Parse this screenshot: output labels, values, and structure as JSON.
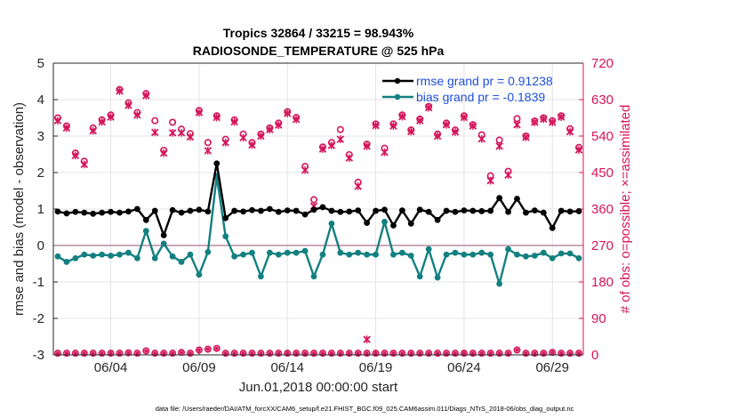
{
  "chart_data": {
    "type": "line",
    "title": "Tropics 32864 / 33215 = 98.943%",
    "subtitle": "RADIOSONDE_TEMPERATURE @ 525 hPa",
    "xlabel": "Jun.01,2018 00:00:00 start",
    "ylabel_left": "rmse and bias (model - observation)",
    "ylabel_right": "# of obs: o=possible; ×=assimilated",
    "footnote": "data file: /Users/raeder/DAI/ATM_forcXX/CAM6_setup/f.e21.FHIST_BGC.f09_025.CAM6assim.011/Diags_NTrS_2018-06/obs_diag_output.nc",
    "x_tick_labels": [
      "06/04",
      "06/09",
      "06/14",
      "06/19",
      "06/24",
      "06/29"
    ],
    "x_tick_days": [
      4,
      9,
      14,
      19,
      24,
      29
    ],
    "xlim": [
      0.75,
      30.75
    ],
    "ylim_left": [
      -3,
      5
    ],
    "yticks_left": [
      "5",
      "4",
      "3",
      "2",
      "1",
      "0",
      "-1",
      "-2",
      "-3"
    ],
    "ylim_right": [
      0,
      720
    ],
    "yticks_right": [
      "720",
      "630",
      "540",
      "450",
      "360",
      "270",
      "180",
      "90",
      "0"
    ],
    "grid": true,
    "colors": {
      "rmse": "#000000",
      "bias": "#138080",
      "obs": "#d4145a",
      "zero_line": "#c8a8b8",
      "legend_text": "#1f4fd8"
    },
    "legend": {
      "position": "top-right",
      "entries": [
        "rmse grand pr = 0.91238",
        "bias grand pr = -0.1839"
      ]
    },
    "series": [
      {
        "name": "rmse",
        "x": [
          1,
          1.5,
          2,
          2.5,
          3,
          3.5,
          4,
          4.5,
          5,
          5.5,
          6,
          6.5,
          7,
          7.5,
          8,
          8.5,
          9,
          9.5,
          10,
          10.5,
          11,
          11.5,
          12,
          12.5,
          13,
          13.5,
          14,
          14.5,
          15,
          15.5,
          16,
          16.5,
          17,
          17.5,
          18,
          18.5,
          19,
          19.5,
          20,
          20.5,
          21,
          21.5,
          22,
          22.5,
          23,
          23.5,
          24,
          24.5,
          25,
          25.5,
          26,
          26.5,
          27,
          27.5,
          28,
          28.5,
          29,
          29.5,
          30,
          30.5
        ],
        "values": [
          0.93,
          0.88,
          0.92,
          0.9,
          0.87,
          0.9,
          0.92,
          0.9,
          0.93,
          1.0,
          0.7,
          0.95,
          0.28,
          0.97,
          0.9,
          0.95,
          0.98,
          0.93,
          2.25,
          0.75,
          0.95,
          0.93,
          0.97,
          0.95,
          1.0,
          0.92,
          0.96,
          0.95,
          0.85,
          0.98,
          1.05,
          0.95,
          0.92,
          0.93,
          0.96,
          0.62,
          0.95,
          0.98,
          0.55,
          0.96,
          0.6,
          0.98,
          0.92,
          0.7,
          0.95,
          0.92,
          0.96,
          0.95,
          0.94,
          0.95,
          1.3,
          0.92,
          1.28,
          0.9,
          0.96,
          0.9,
          0.48,
          0.95,
          0.93,
          0.94
        ]
      },
      {
        "name": "bias",
        "x": [
          1,
          1.5,
          2,
          2.5,
          3,
          3.5,
          4,
          4.5,
          5,
          5.5,
          6,
          6.5,
          7,
          7.5,
          8,
          8.5,
          9,
          9.5,
          10,
          10.5,
          11,
          11.5,
          12,
          12.5,
          13,
          13.5,
          14,
          14.5,
          15,
          15.5,
          16,
          16.5,
          17,
          17.5,
          18,
          18.5,
          19,
          19.5,
          20,
          20.5,
          21,
          21.5,
          22,
          22.5,
          23,
          23.5,
          24,
          24.5,
          25,
          25.5,
          26,
          26.5,
          27,
          27.5,
          28,
          28.5,
          29,
          29.5,
          30,
          30.5
        ],
        "values": [
          -0.3,
          -0.45,
          -0.35,
          -0.25,
          -0.28,
          -0.25,
          -0.28,
          -0.25,
          -0.2,
          -0.35,
          0.4,
          -0.35,
          0.05,
          -0.3,
          -0.45,
          -0.25,
          -0.8,
          -0.18,
          1.9,
          0.25,
          -0.3,
          -0.25,
          -0.2,
          -0.85,
          -0.2,
          -0.25,
          -0.2,
          -0.2,
          -0.15,
          -0.85,
          -0.25,
          0.6,
          -0.2,
          -0.25,
          -0.2,
          -0.25,
          -0.25,
          0.65,
          -0.25,
          -0.2,
          -0.28,
          -0.85,
          -0.1,
          -0.88,
          -0.25,
          -0.2,
          -0.25,
          -0.25,
          -0.2,
          -0.25,
          -1.05,
          -0.1,
          -0.25,
          -0.3,
          -0.28,
          -0.2,
          -0.35,
          -0.22,
          -0.22,
          -0.35
        ]
      },
      {
        "name": "obs possible",
        "marker": "o",
        "x": [
          1,
          1.5,
          2,
          2.5,
          3,
          3.5,
          4,
          4.5,
          5,
          5.5,
          6,
          6.5,
          7,
          7.5,
          8,
          8.5,
          9,
          9.5,
          10,
          10.5,
          11,
          11.5,
          12,
          12.5,
          13,
          13.5,
          14,
          14.5,
          15,
          15.5,
          16,
          16.5,
          17,
          17.5,
          18,
          18.5,
          19,
          19.5,
          20,
          20.5,
          21,
          21.5,
          22,
          22.5,
          23,
          23.5,
          24,
          24.5,
          25,
          25.5,
          26,
          26.5,
          27,
          27.5,
          28,
          28.5,
          29,
          29.5,
          30,
          30.5
        ],
        "values": [
          585,
          565,
          498,
          478,
          560,
          580,
          592,
          655,
          622,
          598,
          645,
          578,
          505,
          574,
          557,
          546,
          603,
          524,
          590,
          532,
          580,
          545,
          524,
          545,
          560,
          572,
          600,
          586,
          465,
          383,
          513,
          524,
          556,
          494,
          426,
          520,
          570,
          510,
          570,
          592,
          555,
          582,
          613,
          545,
          572,
          555,
          590,
          568,
          543,
          442,
          530,
          453,
          583,
          540,
          577,
          585,
          578,
          590,
          558,
          512
        ]
      },
      {
        "name": "obs assimilated",
        "marker": "x",
        "x": [
          1,
          1.5,
          2,
          2.5,
          3,
          3.5,
          4,
          4.5,
          5,
          5.5,
          6,
          6.5,
          7,
          7.5,
          8,
          8.5,
          9,
          9.5,
          10,
          10.5,
          11,
          11.5,
          12,
          12.5,
          13,
          13.5,
          14,
          14.5,
          15,
          15.5,
          16,
          16.5,
          17,
          17.5,
          18,
          18.5,
          19,
          19.5,
          20,
          20.5,
          21,
          21.5,
          22,
          22.5,
          23,
          23.5,
          24,
          24.5,
          25,
          25.5,
          26,
          26.5,
          27,
          27.5,
          28,
          28.5,
          29,
          29.5,
          30,
          30.5
        ],
        "values": [
          578,
          560,
          492,
          470,
          553,
          575,
          587,
          651,
          616,
          592,
          640,
          549,
          498,
          548,
          548,
          538,
          598,
          504,
          586,
          524,
          575,
          536,
          518,
          540,
          556,
          567,
          596,
          581,
          456,
          367,
          508,
          517,
          532,
          486,
          416,
          515,
          566,
          500,
          565,
          588,
          551,
          578,
          610,
          540,
          568,
          550,
          586,
          565,
          533,
          430,
          515,
          444,
          568,
          537,
          574,
          582,
          574,
          587,
          551,
          506
        ]
      },
      {
        "name": "obs rejected",
        "marker": "o",
        "x": [
          1,
          1.5,
          2,
          2.5,
          3,
          3.5,
          4,
          4.5,
          5,
          5.5,
          6,
          6.5,
          7,
          7.5,
          8,
          8.5,
          9,
          9.5,
          10,
          10.5,
          11,
          11.5,
          12,
          12.5,
          13,
          13.5,
          14,
          14.5,
          15,
          15.5,
          16,
          16.5,
          17,
          17.5,
          18,
          18.5,
          19,
          19.5,
          20,
          20.5,
          21,
          21.5,
          22,
          22.5,
          23,
          23.5,
          24,
          24.5,
          25,
          25.5,
          26,
          26.5,
          27,
          27.5,
          28,
          28.5,
          29,
          29.5,
          30,
          30.5
        ],
        "values": [
          4,
          4,
          4,
          4,
          4,
          4,
          4,
          4,
          5,
          4,
          10,
          4,
          4,
          4,
          6,
          4,
          12,
          14,
          16,
          4,
          4,
          4,
          4,
          4,
          4,
          4,
          4,
          4,
          4,
          4,
          4,
          4,
          4,
          4,
          4,
          4,
          4,
          4,
          4,
          4,
          4,
          4,
          4,
          4,
          4,
          4,
          4,
          4,
          4,
          4,
          4,
          4,
          12,
          4,
          4,
          4,
          6,
          4,
          4,
          4
        ]
      },
      {
        "name": "obs outlier",
        "marker": "x",
        "x": [
          18.5
        ],
        "values": [
          38
        ]
      }
    ]
  }
}
